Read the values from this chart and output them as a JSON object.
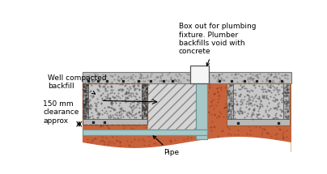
{
  "bg_color": "#ffffff",
  "soil_color": "#c8623a",
  "concrete_color": "#b8b8b8",
  "backfill_color": "#c8c8c8",
  "backfill_hatch_color": "#aaaaaa",
  "pipe_color": "#a8c8c8",
  "pipe_outline": "#6a9898",
  "beam_color": "#c0c0c0",
  "beam_outline": "#888888",
  "box_color": "#f5f5f5",
  "box_outline": "#555555",
  "dashed_outline": "#996633",
  "footing_outline": "#884422",
  "text_color": "#000000",
  "annotations": {
    "box_out": "Box out for plumbing\nfixture. Plumber\nbackfills void with\nconcrete",
    "backfill": "Well compacted\nbackfill",
    "clearance": "150 mm\nclearance\napprox",
    "pipe": "Pipe"
  },
  "figsize": [
    4.04,
    2.15
  ],
  "dpi": 100
}
